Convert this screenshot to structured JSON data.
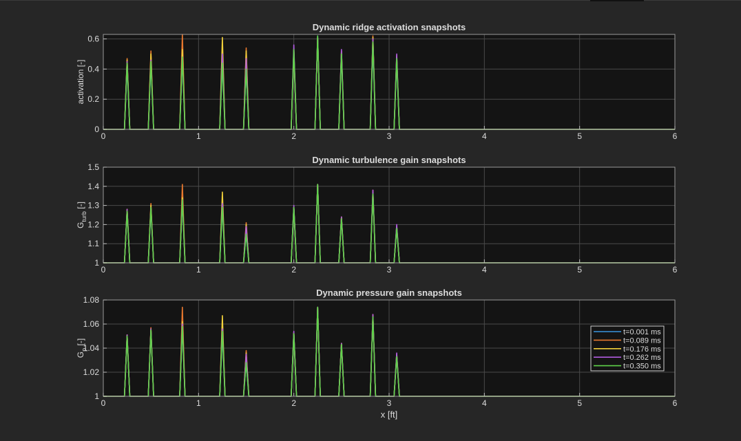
{
  "figure": {
    "background": "#262626",
    "axes_background": "#141414",
    "text_color": "#dcdcdc",
    "grid_color": "#4a4a4a"
  },
  "chart_data": [
    {
      "type": "line",
      "title": "Dynamic ridge activation snapshots",
      "xlabel": "",
      "ylabel": "activation [-]",
      "xlim": [
        0,
        6
      ],
      "ylim": [
        0,
        0.63
      ],
      "xticks": [
        0,
        1,
        2,
        3,
        4,
        5,
        6
      ],
      "yticks": [
        0,
        0.2,
        0.4,
        0.6
      ],
      "ytick_labels": [
        "0",
        "0.2",
        "0.4",
        "0.6"
      ],
      "grid": true,
      "baseline": 0,
      "peak_x": [
        0.25,
        0.5,
        0.83,
        1.25,
        1.5,
        2.0,
        2.25,
        2.5,
        2.83,
        3.08
      ],
      "series": [
        {
          "name": "t=0.001 ms",
          "color": "#3a95e0",
          "peaks": [
            0.42,
            0.44,
            0.47,
            0.43,
            0.4,
            0.51,
            0.62,
            0.49,
            0.55,
            0.45
          ]
        },
        {
          "name": "t=0.089 ms",
          "color": "#e8782e",
          "peaks": [
            0.47,
            0.52,
            0.63,
            0.5,
            0.54,
            0.52,
            0.61,
            0.52,
            0.62,
            0.48
          ]
        },
        {
          "name": "t=0.176 ms",
          "color": "#f2d13b",
          "peaks": [
            0.46,
            0.5,
            0.53,
            0.61,
            0.52,
            0.53,
            0.61,
            0.52,
            0.61,
            0.49
          ]
        },
        {
          "name": "t=0.262 ms",
          "color": "#b05ce0",
          "peaks": [
            0.45,
            0.46,
            0.48,
            0.5,
            0.47,
            0.56,
            0.61,
            0.53,
            0.6,
            0.5
          ]
        },
        {
          "name": "t=0.350 ms",
          "color": "#5fd34a",
          "peaks": [
            0.44,
            0.45,
            0.48,
            0.44,
            0.4,
            0.53,
            0.62,
            0.5,
            0.58,
            0.47
          ]
        }
      ]
    },
    {
      "type": "line",
      "title": "Dynamic turbulence gain snapshots",
      "xlabel": "",
      "ylabel": "G_turb [-]",
      "ylabel_main": "G",
      "ylabel_sub": "turb",
      "ylabel_unit": " [-]",
      "xlim": [
        0,
        6
      ],
      "ylim": [
        1,
        1.5
      ],
      "xticks": [
        0,
        1,
        2,
        3,
        4,
        5,
        6
      ],
      "yticks": [
        1,
        1.1,
        1.2,
        1.3,
        1.4,
        1.5
      ],
      "ytick_labels": [
        "1",
        "1.1",
        "1.2",
        "1.3",
        "1.4",
        "1.5"
      ],
      "grid": true,
      "baseline": 1,
      "peak_x": [
        0.25,
        0.5,
        0.83,
        1.25,
        1.5,
        2.0,
        2.25,
        2.5,
        2.83,
        3.08
      ],
      "series": [
        {
          "name": "t=0.001 ms",
          "color": "#3a95e0",
          "peaks": [
            1.27,
            1.28,
            1.32,
            1.29,
            1.15,
            1.28,
            1.41,
            1.23,
            1.36,
            1.18
          ]
        },
        {
          "name": "t=0.089 ms",
          "color": "#e8782e",
          "peaks": [
            1.28,
            1.31,
            1.41,
            1.33,
            1.21,
            1.29,
            1.41,
            1.24,
            1.38,
            1.19
          ]
        },
        {
          "name": "t=0.176 ms",
          "color": "#f2d13b",
          "peaks": [
            1.28,
            1.3,
            1.34,
            1.37,
            1.2,
            1.29,
            1.41,
            1.24,
            1.37,
            1.19
          ]
        },
        {
          "name": "t=0.262 ms",
          "color": "#b05ce0",
          "peaks": [
            1.28,
            1.29,
            1.33,
            1.31,
            1.19,
            1.3,
            1.41,
            1.24,
            1.38,
            1.2
          ]
        },
        {
          "name": "t=0.350 ms",
          "color": "#5fd34a",
          "peaks": [
            1.27,
            1.29,
            1.33,
            1.29,
            1.15,
            1.29,
            1.41,
            1.23,
            1.36,
            1.18
          ]
        }
      ]
    },
    {
      "type": "line",
      "title": "Dynamic pressure gain snapshots",
      "xlabel": "x [ft]",
      "ylabel": "G_p [-]",
      "ylabel_main": "G",
      "ylabel_sub": "p",
      "ylabel_unit": " [-]",
      "xlim": [
        0,
        6
      ],
      "ylim": [
        1,
        1.08
      ],
      "xticks": [
        0,
        1,
        2,
        3,
        4,
        5,
        6
      ],
      "yticks": [
        1,
        1.02,
        1.04,
        1.06,
        1.08
      ],
      "ytick_labels": [
        "1",
        "1.02",
        "1.04",
        "1.06",
        "1.08"
      ],
      "grid": true,
      "baseline": 1,
      "legend_position": "right",
      "peak_x": [
        0.25,
        0.5,
        0.83,
        1.25,
        1.5,
        2.0,
        2.25,
        2.5,
        2.83,
        3.08
      ],
      "series": [
        {
          "name": "t=0.001 ms",
          "color": "#3a95e0",
          "peaks": [
            1.05,
            1.055,
            1.057,
            1.052,
            1.028,
            1.052,
            1.074,
            1.043,
            1.066,
            1.033
          ]
        },
        {
          "name": "t=0.089 ms",
          "color": "#e8782e",
          "peaks": [
            1.051,
            1.057,
            1.074,
            1.06,
            1.038,
            1.053,
            1.074,
            1.044,
            1.068,
            1.035
          ]
        },
        {
          "name": "t=0.176 ms",
          "color": "#f2d13b",
          "peaks": [
            1.051,
            1.056,
            1.062,
            1.067,
            1.036,
            1.053,
            1.074,
            1.044,
            1.067,
            1.035
          ]
        },
        {
          "name": "t=0.262 ms",
          "color": "#b05ce0",
          "peaks": [
            1.051,
            1.056,
            1.06,
            1.056,
            1.035,
            1.054,
            1.074,
            1.044,
            1.068,
            1.036
          ]
        },
        {
          "name": "t=0.350 ms",
          "color": "#5fd34a",
          "peaks": [
            1.05,
            1.055,
            1.058,
            1.054,
            1.028,
            1.052,
            1.074,
            1.043,
            1.066,
            1.033
          ]
        }
      ]
    }
  ]
}
